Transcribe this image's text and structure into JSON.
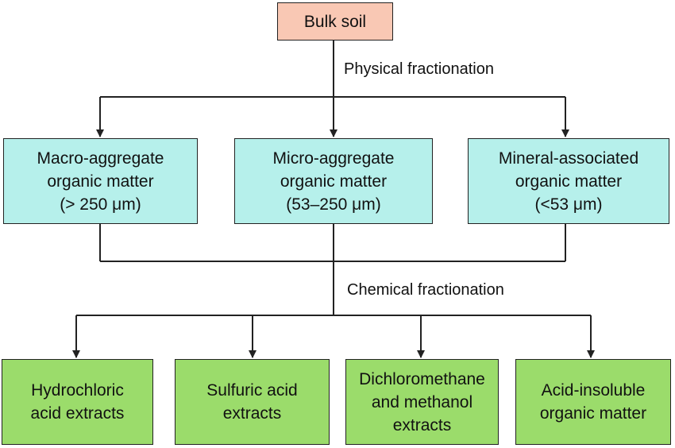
{
  "diagram": {
    "root": {
      "label": "Bulk soil"
    },
    "physical_label": "Physical fractionation",
    "chemical_label": "Chemical fractionation",
    "fractions": [
      {
        "lines": [
          "Macro-aggregate",
          "organic matter",
          "(> 250 μm)"
        ]
      },
      {
        "lines": [
          "Micro-aggregate",
          "organic matter",
          "(53–250 μm)"
        ]
      },
      {
        "lines": [
          "Mineral-associated",
          "organic matter",
          "(<53 μm)"
        ]
      }
    ],
    "extracts": [
      {
        "lines": [
          "Hydrochloric",
          "acid extracts"
        ]
      },
      {
        "lines": [
          "Sulfuric acid",
          "extracts"
        ]
      },
      {
        "lines": [
          "Dichloromethane",
          "and methanol",
          "extracts"
        ]
      },
      {
        "lines": [
          "Acid-insoluble",
          "organic matter"
        ]
      }
    ]
  },
  "colors": {
    "root_fill": "#f9c8b4",
    "fraction_fill": "#b6f0eb",
    "extract_fill": "#9bdc6b",
    "line": "#222222"
  }
}
